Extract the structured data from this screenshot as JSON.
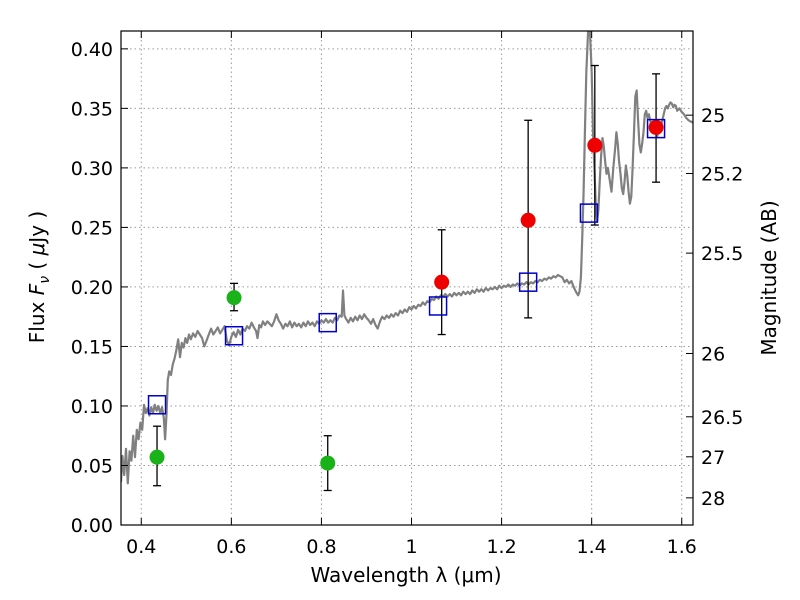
{
  "chart_data": {
    "type": "scatter",
    "xlabel": "Wavelength  λ (μm)",
    "ylabel_parts": [
      "Flux  ",
      "F",
      "ν",
      "  ( ",
      "μ",
      "Jy )"
    ],
    "ylabel_right": "Magnitude (AB)",
    "xlim": [
      0.355,
      1.625
    ],
    "ylim": [
      0.0,
      0.415
    ],
    "grid": true,
    "x_ticks": [
      {
        "value": 0.4,
        "label": "0.4"
      },
      {
        "value": 0.6,
        "label": "0.6"
      },
      {
        "value": 0.8,
        "label": "0.8"
      },
      {
        "value": 1.0,
        "label": "1"
      },
      {
        "value": 1.2,
        "label": "1.2"
      },
      {
        "value": 1.4,
        "label": "1.4"
      },
      {
        "value": 1.6,
        "label": "1.6"
      }
    ],
    "y_ticks": [
      {
        "value": 0.0,
        "label": "0.00"
      },
      {
        "value": 0.05,
        "label": "0.05"
      },
      {
        "value": 0.1,
        "label": "0.10"
      },
      {
        "value": 0.15,
        "label": "0.15"
      },
      {
        "value": 0.2,
        "label": "0.20"
      },
      {
        "value": 0.25,
        "label": "0.25"
      },
      {
        "value": 0.3,
        "label": "0.30"
      },
      {
        "value": 0.35,
        "label": "0.35"
      },
      {
        "value": 0.4,
        "label": "0.40"
      }
    ],
    "right_ticks": [
      {
        "flux": 0.3443,
        "label": "25"
      },
      {
        "flux": 0.2953,
        "label": "25.2"
      },
      {
        "flux": 0.2284,
        "label": "25.5"
      },
      {
        "flux": 0.1441,
        "label": "26"
      },
      {
        "flux": 0.0909,
        "label": "26.5"
      },
      {
        "flux": 0.0573,
        "label": "27"
      },
      {
        "flux": 0.0228,
        "label": "28"
      }
    ],
    "colors": {
      "model": "#808080",
      "green": "#19b219",
      "red": "#ee0000",
      "box": "#0000cc",
      "errorbar": "#000000",
      "grid": "#9a9a9a"
    },
    "model_spectrum": [
      [
        0.355,
        0.036
      ],
      [
        0.358,
        0.058
      ],
      [
        0.362,
        0.042
      ],
      [
        0.366,
        0.064
      ],
      [
        0.37,
        0.035
      ],
      [
        0.374,
        0.062
      ],
      [
        0.378,
        0.054
      ],
      [
        0.382,
        0.075
      ],
      [
        0.386,
        0.057
      ],
      [
        0.39,
        0.08
      ],
      [
        0.394,
        0.072
      ],
      [
        0.398,
        0.086
      ],
      [
        0.402,
        0.08
      ],
      [
        0.406,
        0.101
      ],
      [
        0.41,
        0.094
      ],
      [
        0.414,
        0.098
      ],
      [
        0.418,
        0.092
      ],
      [
        0.422,
        0.099
      ],
      [
        0.426,
        0.094
      ],
      [
        0.43,
        0.101
      ],
      [
        0.434,
        0.096
      ],
      [
        0.438,
        0.1
      ],
      [
        0.442,
        0.094
      ],
      [
        0.446,
        0.099
      ],
      [
        0.45,
        0.09
      ],
      [
        0.453,
        0.072
      ],
      [
        0.456,
        0.093
      ],
      [
        0.459,
        0.122
      ],
      [
        0.462,
        0.129
      ],
      [
        0.466,
        0.126
      ],
      [
        0.47,
        0.135
      ],
      [
        0.474,
        0.14
      ],
      [
        0.478,
        0.147
      ],
      [
        0.482,
        0.156
      ],
      [
        0.486,
        0.141
      ],
      [
        0.49,
        0.153
      ],
      [
        0.494,
        0.149
      ],
      [
        0.498,
        0.157
      ],
      [
        0.502,
        0.153
      ],
      [
        0.506,
        0.16
      ],
      [
        0.51,
        0.156
      ],
      [
        0.515,
        0.161
      ],
      [
        0.52,
        0.158
      ],
      [
        0.525,
        0.163
      ],
      [
        0.53,
        0.16
      ],
      [
        0.535,
        0.157
      ],
      [
        0.54,
        0.15
      ],
      [
        0.545,
        0.155
      ],
      [
        0.55,
        0.16
      ],
      [
        0.555,
        0.165
      ],
      [
        0.56,
        0.16
      ],
      [
        0.565,
        0.163
      ],
      [
        0.57,
        0.166
      ],
      [
        0.575,
        0.161
      ],
      [
        0.58,
        0.164
      ],
      [
        0.585,
        0.167
      ],
      [
        0.59,
        0.155
      ],
      [
        0.595,
        0.151
      ],
      [
        0.6,
        0.158
      ],
      [
        0.605,
        0.162
      ],
      [
        0.61,
        0.158
      ],
      [
        0.615,
        0.164
      ],
      [
        0.62,
        0.16
      ],
      [
        0.625,
        0.165
      ],
      [
        0.63,
        0.163
      ],
      [
        0.635,
        0.167
      ],
      [
        0.64,
        0.165
      ],
      [
        0.645,
        0.17
      ],
      [
        0.65,
        0.166
      ],
      [
        0.655,
        0.163
      ],
      [
        0.658,
        0.157
      ],
      [
        0.662,
        0.168
      ],
      [
        0.666,
        0.166
      ],
      [
        0.67,
        0.171
      ],
      [
        0.675,
        0.168
      ],
      [
        0.68,
        0.171
      ],
      [
        0.685,
        0.169
      ],
      [
        0.69,
        0.167
      ],
      [
        0.695,
        0.171
      ],
      [
        0.7,
        0.177
      ],
      [
        0.705,
        0.172
      ],
      [
        0.71,
        0.169
      ],
      [
        0.715,
        0.165
      ],
      [
        0.72,
        0.169
      ],
      [
        0.725,
        0.167
      ],
      [
        0.73,
        0.171
      ],
      [
        0.735,
        0.166
      ],
      [
        0.74,
        0.17
      ],
      [
        0.745,
        0.167
      ],
      [
        0.75,
        0.169
      ],
      [
        0.755,
        0.166
      ],
      [
        0.76,
        0.17
      ],
      [
        0.765,
        0.167
      ],
      [
        0.77,
        0.171
      ],
      [
        0.775,
        0.168
      ],
      [
        0.78,
        0.17
      ],
      [
        0.785,
        0.167
      ],
      [
        0.79,
        0.171
      ],
      [
        0.795,
        0.169
      ],
      [
        0.8,
        0.172
      ],
      [
        0.805,
        0.17
      ],
      [
        0.81,
        0.173
      ],
      [
        0.815,
        0.17
      ],
      [
        0.82,
        0.172
      ],
      [
        0.825,
        0.17
      ],
      [
        0.83,
        0.174
      ],
      [
        0.835,
        0.172
      ],
      [
        0.84,
        0.176
      ],
      [
        0.845,
        0.175
      ],
      [
        0.848,
        0.197
      ],
      [
        0.851,
        0.176
      ],
      [
        0.855,
        0.173
      ],
      [
        0.86,
        0.17
      ],
      [
        0.865,
        0.174
      ],
      [
        0.87,
        0.171
      ],
      [
        0.875,
        0.175
      ],
      [
        0.88,
        0.172
      ],
      [
        0.885,
        0.176
      ],
      [
        0.89,
        0.173
      ],
      [
        0.895,
        0.177
      ],
      [
        0.9,
        0.174
      ],
      [
        0.905,
        0.172
      ],
      [
        0.91,
        0.169
      ],
      [
        0.915,
        0.173
      ],
      [
        0.92,
        0.168
      ],
      [
        0.925,
        0.165
      ],
      [
        0.93,
        0.171
      ],
      [
        0.935,
        0.175
      ],
      [
        0.94,
        0.173
      ],
      [
        0.945,
        0.176
      ],
      [
        0.95,
        0.174
      ],
      [
        0.955,
        0.177
      ],
      [
        0.96,
        0.175
      ],
      [
        0.965,
        0.178
      ],
      [
        0.97,
        0.176
      ],
      [
        0.975,
        0.18
      ],
      [
        0.98,
        0.178
      ],
      [
        0.985,
        0.181
      ],
      [
        0.99,
        0.179
      ],
      [
        0.995,
        0.183
      ],
      [
        1.0,
        0.181
      ],
      [
        1.005,
        0.184
      ],
      [
        1.01,
        0.182
      ],
      [
        1.015,
        0.185
      ],
      [
        1.02,
        0.184
      ],
      [
        1.025,
        0.187
      ],
      [
        1.03,
        0.185
      ],
      [
        1.035,
        0.188
      ],
      [
        1.04,
        0.187
      ],
      [
        1.045,
        0.19
      ],
      [
        1.05,
        0.189
      ],
      [
        1.055,
        0.192
      ],
      [
        1.06,
        0.19
      ],
      [
        1.065,
        0.193
      ],
      [
        1.07,
        0.192
      ],
      [
        1.075,
        0.194
      ],
      [
        1.08,
        0.192
      ],
      [
        1.085,
        0.194
      ],
      [
        1.09,
        0.192
      ],
      [
        1.095,
        0.195
      ],
      [
        1.1,
        0.193
      ],
      [
        1.105,
        0.195
      ],
      [
        1.11,
        0.193
      ],
      [
        1.115,
        0.196
      ],
      [
        1.12,
        0.194
      ],
      [
        1.125,
        0.196
      ],
      [
        1.13,
        0.194
      ],
      [
        1.135,
        0.197
      ],
      [
        1.14,
        0.195
      ],
      [
        1.145,
        0.198
      ],
      [
        1.15,
        0.196
      ],
      [
        1.155,
        0.198
      ],
      [
        1.16,
        0.196
      ],
      [
        1.165,
        0.199
      ],
      [
        1.17,
        0.197
      ],
      [
        1.175,
        0.199
      ],
      [
        1.18,
        0.198
      ],
      [
        1.185,
        0.2
      ],
      [
        1.19,
        0.198
      ],
      [
        1.195,
        0.201
      ],
      [
        1.2,
        0.199
      ],
      [
        1.205,
        0.201
      ],
      [
        1.21,
        0.2
      ],
      [
        1.215,
        0.202
      ],
      [
        1.22,
        0.2
      ],
      [
        1.225,
        0.202
      ],
      [
        1.23,
        0.201
      ],
      [
        1.235,
        0.203
      ],
      [
        1.24,
        0.201
      ],
      [
        1.245,
        0.203
      ],
      [
        1.25,
        0.202
      ],
      [
        1.255,
        0.204
      ],
      [
        1.26,
        0.202
      ],
      [
        1.265,
        0.204
      ],
      [
        1.27,
        0.203
      ],
      [
        1.275,
        0.205
      ],
      [
        1.28,
        0.204
      ],
      [
        1.285,
        0.206
      ],
      [
        1.29,
        0.205
      ],
      [
        1.295,
        0.207
      ],
      [
        1.3,
        0.206
      ],
      [
        1.305,
        0.208
      ],
      [
        1.31,
        0.207
      ],
      [
        1.315,
        0.209
      ],
      [
        1.32,
        0.208
      ],
      [
        1.325,
        0.21
      ],
      [
        1.33,
        0.209
      ],
      [
        1.335,
        0.208
      ],
      [
        1.34,
        0.204
      ],
      [
        1.345,
        0.206
      ],
      [
        1.35,
        0.203
      ],
      [
        1.355,
        0.205
      ],
      [
        1.36,
        0.2
      ],
      [
        1.365,
        0.196
      ],
      [
        1.37,
        0.193
      ],
      [
        1.373,
        0.196
      ],
      [
        1.376,
        0.208
      ],
      [
        1.379,
        0.24
      ],
      [
        1.382,
        0.28
      ],
      [
        1.385,
        0.33
      ],
      [
        1.388,
        0.38
      ],
      [
        1.392,
        0.415
      ],
      [
        1.396,
        0.415
      ],
      [
        1.4,
        0.38
      ],
      [
        1.403,
        0.33
      ],
      [
        1.406,
        0.3
      ],
      [
        1.409,
        0.27
      ],
      [
        1.412,
        0.255
      ],
      [
        1.415,
        0.265
      ],
      [
        1.418,
        0.29
      ],
      [
        1.421,
        0.31
      ],
      [
        1.424,
        0.325
      ],
      [
        1.427,
        0.318
      ],
      [
        1.43,
        0.305
      ],
      [
        1.433,
        0.295
      ],
      [
        1.436,
        0.3
      ],
      [
        1.44,
        0.29
      ],
      [
        1.444,
        0.28
      ],
      [
        1.448,
        0.3
      ],
      [
        1.452,
        0.316
      ],
      [
        1.455,
        0.33
      ],
      [
        1.458,
        0.32
      ],
      [
        1.461,
        0.305
      ],
      [
        1.464,
        0.295
      ],
      [
        1.467,
        0.283
      ],
      [
        1.47,
        0.278
      ],
      [
        1.473,
        0.288
      ],
      [
        1.476,
        0.302
      ],
      [
        1.479,
        0.294
      ],
      [
        1.482,
        0.28
      ],
      [
        1.485,
        0.27
      ],
      [
        1.488,
        0.276
      ],
      [
        1.491,
        0.3
      ],
      [
        1.494,
        0.33
      ],
      [
        1.497,
        0.36
      ],
      [
        1.5,
        0.365
      ],
      [
        1.503,
        0.34
      ],
      [
        1.506,
        0.32
      ],
      [
        1.509,
        0.313
      ],
      [
        1.512,
        0.32
      ],
      [
        1.515,
        0.33
      ],
      [
        1.518,
        0.345
      ],
      [
        1.521,
        0.348
      ],
      [
        1.524,
        0.342
      ],
      [
        1.527,
        0.345
      ],
      [
        1.53,
        0.34
      ],
      [
        1.533,
        0.336
      ],
      [
        1.536,
        0.332
      ],
      [
        1.539,
        0.334
      ],
      [
        1.542,
        0.33
      ],
      [
        1.545,
        0.326
      ],
      [
        1.548,
        0.33
      ],
      [
        1.551,
        0.332
      ],
      [
        1.554,
        0.336
      ],
      [
        1.557,
        0.34
      ],
      [
        1.56,
        0.345
      ],
      [
        1.563,
        0.35
      ],
      [
        1.566,
        0.352
      ],
      [
        1.569,
        0.35
      ],
      [
        1.572,
        0.353
      ],
      [
        1.575,
        0.355
      ],
      [
        1.578,
        0.354
      ],
      [
        1.581,
        0.351
      ],
      [
        1.584,
        0.353
      ],
      [
        1.587,
        0.352
      ],
      [
        1.59,
        0.348
      ],
      [
        1.595,
        0.35
      ],
      [
        1.6,
        0.347
      ],
      [
        1.605,
        0.345
      ],
      [
        1.61,
        0.342
      ],
      [
        1.615,
        0.34
      ],
      [
        1.62,
        0.339
      ],
      [
        1.625,
        0.338
      ]
    ],
    "measurements_green": [
      {
        "x": 0.435,
        "y": 0.057,
        "err_low": 0.033,
        "err_high": 0.083
      },
      {
        "x": 0.606,
        "y": 0.191,
        "err_low": 0.18,
        "err_high": 0.203
      },
      {
        "x": 0.814,
        "y": 0.052,
        "err_low": 0.029,
        "err_high": 0.075
      }
    ],
    "measurements_red": [
      {
        "x": 1.067,
        "y": 0.204,
        "err_low": 0.16,
        "err_high": 0.248
      },
      {
        "x": 1.259,
        "y": 0.256,
        "err_low": 0.174,
        "err_high": 0.34
      },
      {
        "x": 1.407,
        "y": 0.319,
        "err_low": 0.252,
        "err_high": 0.386
      },
      {
        "x": 1.543,
        "y": 0.334,
        "err_low": 0.288,
        "err_high": 0.379
      }
    ],
    "model_photometry": [
      {
        "x": 0.435,
        "y": 0.101
      },
      {
        "x": 0.606,
        "y": 0.159
      },
      {
        "x": 0.814,
        "y": 0.17
      },
      {
        "x": 1.059,
        "y": 0.184
      },
      {
        "x": 1.259,
        "y": 0.204
      },
      {
        "x": 1.394,
        "y": 0.262
      },
      {
        "x": 1.543,
        "y": 0.333
      }
    ]
  }
}
